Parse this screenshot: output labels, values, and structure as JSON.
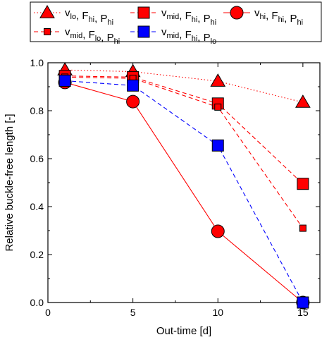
{
  "chart_data": {
    "type": "line",
    "xlabel": "Out-time [d]",
    "ylabel": "Relative buckle-free length [-]",
    "xlim": [
      0,
      16
    ],
    "ylim": [
      0.0,
      1.0
    ],
    "xticks": [
      "0",
      "5",
      "10",
      "15"
    ],
    "yticks": [
      "0.0",
      "0.2",
      "0.4",
      "0.6",
      "0.8",
      "1.0"
    ],
    "grid": false,
    "legend_position": "top",
    "x": [
      1,
      5,
      10,
      15
    ],
    "series": [
      {
        "legend": [
          {
            "t": "v",
            "s": "lo"
          },
          {
            "t": ", F",
            "s": "hi"
          },
          {
            "t": ", P",
            "s": "hi"
          }
        ],
        "values": [
          0.97,
          0.963,
          0.923,
          0.835
        ],
        "color": "#ff0000",
        "line_style": "dotted",
        "marker": "triangle",
        "marker_fill": "#ff0000"
      },
      {
        "legend": [
          {
            "t": "v",
            "s": "mid"
          },
          {
            "t": ", F",
            "s": "hi"
          },
          {
            "t": ", P",
            "s": "hi"
          }
        ],
        "values": [
          0.945,
          0.94,
          0.83,
          0.495
        ],
        "color": "#ff0000",
        "line_style": "dashed",
        "marker": "square",
        "marker_fill": "#ff0000"
      },
      {
        "legend": [
          {
            "t": "v",
            "s": "hi"
          },
          {
            "t": ", F",
            "s": "hi"
          },
          {
            "t": ", P",
            "s": "hi"
          }
        ],
        "values": [
          0.918,
          0.838,
          0.297,
          0.0
        ],
        "color": "#ff0000",
        "line_style": "solid",
        "marker": "circle",
        "marker_fill": "#ff0000"
      },
      {
        "legend": [
          {
            "t": "v",
            "s": "mid"
          },
          {
            "t": ", F",
            "s": "lo"
          },
          {
            "t": ", P",
            "s": "hi"
          }
        ],
        "values": [
          0.94,
          0.935,
          0.815,
          0.31
        ],
        "color": "#ff0000",
        "line_style": "dashed",
        "marker": "small-square",
        "marker_fill": "#ff0000"
      },
      {
        "legend": [
          {
            "t": "v",
            "s": "mid"
          },
          {
            "t": ", F",
            "s": "hi"
          },
          {
            "t": ", P",
            "s": "lo"
          }
        ],
        "values": [
          0.925,
          0.905,
          0.655,
          0.0
        ],
        "color": "#0000ff",
        "line_style": "dashed",
        "marker": "square",
        "marker_fill": "#0000ff"
      }
    ]
  }
}
